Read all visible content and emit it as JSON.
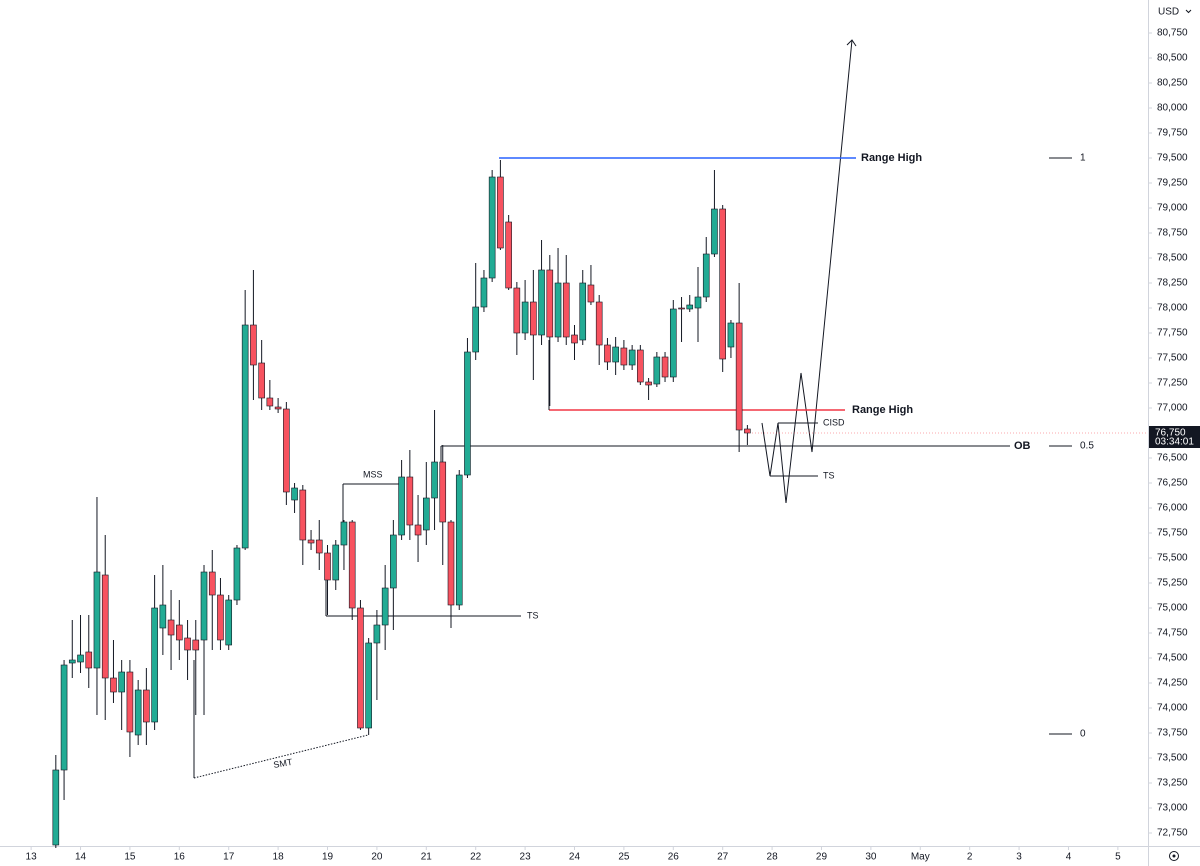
{
  "chart_data": {
    "type": "candlestick",
    "currency": "USD",
    "up_color": "#22ab94",
    "down_color": "#f7525f",
    "x": [
      13.5,
      13.667,
      13.833,
      14,
      14.167,
      14.333,
      14.5,
      14.667,
      14.833,
      15,
      15.167,
      15.333,
      15.5,
      15.667,
      15.833,
      16,
      16.167,
      16.333,
      16.5,
      16.667,
      16.833,
      17,
      17.167,
      17.333,
      17.5,
      17.667,
      17.833,
      18,
      18.167,
      18.333,
      18.5,
      18.667,
      18.833,
      19,
      19.167,
      19.333,
      19.5,
      19.667,
      19.833,
      20,
      20.167,
      20.333,
      20.5,
      20.667,
      20.833,
      21,
      21.167,
      21.333,
      21.5,
      21.667,
      21.833,
      22,
      22.167,
      22.333,
      22.5,
      22.667,
      22.833,
      23,
      23.167,
      23.333,
      23.5,
      23.667,
      23.833,
      24,
      24.167,
      24.333,
      24.5,
      24.667,
      24.833,
      25,
      25.167,
      25.333,
      25.5,
      25.667,
      25.833,
      26,
      26.167,
      26.333,
      26.5,
      26.667,
      26.833,
      27,
      27.167,
      27.333,
      27.5
    ],
    "open": [
      72630,
      73380,
      74450,
      74460,
      74560,
      74400,
      75330,
      74300,
      74160,
      74360,
      73730,
      74180,
      73860,
      74800,
      74880,
      74830,
      74700,
      74680,
      74680,
      75360,
      75130,
      74630,
      75080,
      75600,
      77830,
      77450,
      77100,
      77010,
      76990,
      76080,
      76180,
      75680,
      75680,
      75550,
      75280,
      75630,
      75860,
      75000,
      73800,
      74650,
      74830,
      75200,
      75730,
      76310,
      75830,
      75780,
      76100,
      76460,
      75860,
      75030,
      76330,
      77560,
      78010,
      78300,
      79310,
      78860,
      78200,
      77750,
      78060,
      77730,
      78380,
      77710,
      78250,
      77730,
      77680,
      78230,
      78060,
      77630,
      77460,
      77600,
      77430,
      77580,
      77260,
      77240,
      77510,
      77310,
      78000,
      77990,
      78000,
      78110,
      78540,
      78990,
      77610,
      77850,
      76790
    ],
    "high": [
      73530,
      74480,
      74880,
      74930,
      74930,
      76110,
      75730,
      74680,
      74480,
      74480,
      74280,
      74400,
      75330,
      75430,
      75180,
      75080,
      74880,
      74880,
      75430,
      75580,
      75300,
      75130,
      75630,
      78180,
      78380,
      77680,
      77280,
      77100,
      77060,
      76250,
      76230,
      75780,
      75880,
      75630,
      75680,
      75880,
      75880,
      75080,
      74700,
      74980,
      75430,
      75880,
      76480,
      76580,
      76130,
      76460,
      76980,
      76630,
      75880,
      76380,
      77700,
      78450,
      78380,
      79380,
      79480,
      78930,
      78260,
      78280,
      78380,
      78680,
      78530,
      78600,
      78530,
      77830,
      78380,
      78430,
      78130,
      77700,
      77710,
      77680,
      77630,
      77630,
      77300,
      77560,
      77560,
      78080,
      78110,
      78130,
      78410,
      78710,
      79380,
      79030,
      77880,
      78250,
      76830
    ],
    "low": [
      72600,
      73080,
      74300,
      74350,
      74200,
      73930,
      73880,
      74050,
      73780,
      73510,
      73630,
      73630,
      73780,
      74530,
      74380,
      74480,
      74280,
      73930,
      73930,
      74580,
      74580,
      74580,
      75030,
      75580,
      77080,
      76980,
      76980,
      76950,
      76030,
      75950,
      75430,
      75580,
      75380,
      74930,
      75180,
      75380,
      74880,
      73780,
      73730,
      74080,
      74580,
      74780,
      75680,
      75680,
      75460,
      75630,
      75780,
      75430,
      74800,
      74980,
      76300,
      77480,
      77960,
      78260,
      78580,
      78180,
      77530,
      77680,
      77280,
      77630,
      77020,
      77660,
      77630,
      77480,
      77630,
      78030,
      77430,
      77380,
      77330,
      77380,
      77380,
      77230,
      77080,
      77210,
      77260,
      77260,
      77660,
      77960,
      77660,
      78060,
      78510,
      77360,
      77500,
      76560,
      76630
    ],
    "close": [
      73380,
      74430,
      74480,
      74530,
      74400,
      75360,
      74300,
      74160,
      74360,
      73760,
      74180,
      73860,
      75000,
      75030,
      74730,
      74680,
      74580,
      74580,
      75360,
      75130,
      74680,
      75080,
      75600,
      77830,
      77430,
      77100,
      77020,
      76990,
      76160,
      76200,
      75680,
      75650,
      75550,
      75280,
      75630,
      75860,
      75000,
      73800,
      74650,
      74830,
      75200,
      75730,
      76310,
      75830,
      75730,
      76100,
      76460,
      75860,
      75030,
      76330,
      77560,
      78010,
      78300,
      79310,
      78600,
      78200,
      77750,
      78060,
      77730,
      78380,
      77710,
      78250,
      77710,
      77650,
      78250,
      78060,
      77630,
      77460,
      77610,
      77430,
      77580,
      77260,
      77230,
      77510,
      77310,
      77990,
      77990,
      78030,
      78110,
      78540,
      78990,
      77490,
      77850,
      76780,
      76750
    ],
    "ylim": [
      72620,
      81080
    ],
    "yticks": [
      {
        "value": 72750,
        "label": "72,750"
      },
      {
        "value": 73000,
        "label": "73,000"
      },
      {
        "value": 73250,
        "label": "73,250"
      },
      {
        "value": 73500,
        "label": "73,500"
      },
      {
        "value": 73750,
        "label": "73,750"
      },
      {
        "value": 74000,
        "label": "74,000"
      },
      {
        "value": 74250,
        "label": "74,250"
      },
      {
        "value": 74500,
        "label": "74,500"
      },
      {
        "value": 74750,
        "label": "74,750"
      },
      {
        "value": 75000,
        "label": "75,000"
      },
      {
        "value": 75250,
        "label": "75,250"
      },
      {
        "value": 75500,
        "label": "75,500"
      },
      {
        "value": 75750,
        "label": "75,750"
      },
      {
        "value": 76000,
        "label": "76,000"
      },
      {
        "value": 76250,
        "label": "76,250"
      },
      {
        "value": 76500,
        "label": "76,500"
      },
      {
        "value": 76750,
        "label": "76,750"
      },
      {
        "value": 77000,
        "label": "77,000"
      },
      {
        "value": 77250,
        "label": "77,250"
      },
      {
        "value": 77500,
        "label": "77,500"
      },
      {
        "value": 77750,
        "label": "77,750"
      },
      {
        "value": 78000,
        "label": "78,000"
      },
      {
        "value": 78250,
        "label": "78,250"
      },
      {
        "value": 78500,
        "label": "78,500"
      },
      {
        "value": 78750,
        "label": "78,750"
      },
      {
        "value": 79000,
        "label": "79,000"
      },
      {
        "value": 79250,
        "label": "79,250"
      },
      {
        "value": 79500,
        "label": "79,500"
      },
      {
        "value": 79750,
        "label": "79,750"
      },
      {
        "value": 80000,
        "label": "80,000"
      },
      {
        "value": 80250,
        "label": "80,250"
      },
      {
        "value": 80500,
        "label": "80,500"
      },
      {
        "value": 80750,
        "label": "80,750"
      }
    ],
    "xlim": [
      12.37,
      35.61
    ],
    "xticks": [
      13,
      14,
      15,
      16,
      17,
      18,
      19,
      20,
      21,
      22,
      23,
      24,
      25,
      26,
      27,
      28,
      29,
      30,
      {
        "value": 31,
        "label": "May"
      },
      {
        "value": 32,
        "label": "2"
      },
      {
        "value": 33,
        "label": "3"
      },
      {
        "value": 34,
        "label": "4"
      },
      {
        "value": 35,
        "label": "5"
      }
    ],
    "last_price": {
      "value": 76750,
      "label": "76,750"
    },
    "countdown": "03:34:01",
    "levels": [
      {
        "label": "Range High",
        "value": 79500,
        "color": "#2962ff"
      },
      {
        "label": "Range High",
        "value": 76980,
        "color": "#f23645"
      },
      {
        "label": "OB",
        "value": 76620,
        "color": "#131722"
      },
      {
        "label": "TS",
        "value": 74920,
        "color": "#131722"
      },
      {
        "label": "MSS",
        "value": 76240,
        "color": "#131722"
      },
      {
        "label": "CISD",
        "value": 76850,
        "color": "#131722"
      },
      {
        "label": "TS",
        "value": 76320,
        "color": "#131722"
      }
    ],
    "smt": "SMT",
    "fib_levels": [
      {
        "label": "1",
        "value": 79500
      },
      {
        "label": "0.5",
        "value": 76620
      },
      {
        "label": "0",
        "value": 73740
      }
    ]
  }
}
